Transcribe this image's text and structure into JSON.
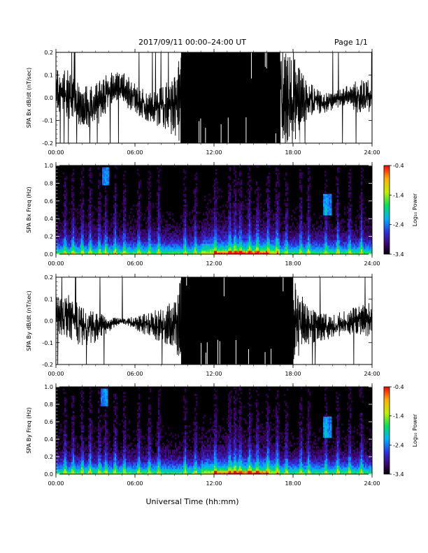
{
  "header": {
    "title": "2017/09/11   00:00–24:00 UT",
    "page": "Page 1/1"
  },
  "xlabel": "Universal Time (hh:mm)",
  "chart_data": [
    {
      "type": "line",
      "ylabel": "SPA Bx dB/dt (nT/sec)",
      "x_ticks": [
        "00:00",
        "06:00",
        "12:00",
        "18:00",
        "24:00"
      ],
      "xlim_hours": [
        0,
        24
      ],
      "ylim": [
        -0.2,
        0.2
      ],
      "y_ticks": [
        "-0.2",
        "-0.1",
        "0.0",
        "0.1",
        "0.2"
      ],
      "series_color": "#000000",
      "envelope": {
        "hours": [
          0,
          1,
          2,
          3,
          4,
          5,
          6,
          7,
          8,
          9,
          9.5,
          10,
          11,
          12,
          13,
          14,
          15,
          16,
          17,
          18,
          19,
          20,
          21,
          22,
          23,
          24
        ],
        "upper": [
          0.13,
          0.12,
          0.05,
          0.06,
          0.11,
          0.12,
          0.07,
          0.02,
          0.06,
          0.09,
          0.21,
          0.21,
          0.21,
          0.21,
          0.21,
          0.21,
          0.21,
          0.21,
          0.21,
          0.2,
          0.08,
          0.03,
          0.03,
          0.05,
          0.08,
          0.09
        ],
        "lower": [
          -0.05,
          -0.1,
          -0.13,
          -0.14,
          -0.05,
          -0.02,
          -0.08,
          -0.11,
          -0.13,
          -0.17,
          -0.21,
          -0.21,
          -0.21,
          -0.21,
          -0.21,
          -0.21,
          -0.21,
          -0.21,
          -0.21,
          -0.21,
          -0.1,
          -0.07,
          -0.06,
          -0.03,
          -0.07,
          -0.08
        ]
      }
    },
    {
      "type": "heatmap",
      "ylabel": "SPA Bx Freq (Hz)",
      "x_ticks": [
        "00:00",
        "06:00",
        "12:00",
        "18:00",
        "24:00"
      ],
      "xlim_hours": [
        0,
        24
      ],
      "ylim": [
        0.0,
        1.0
      ],
      "y_ticks": [
        "0.0",
        "0.2",
        "0.4",
        "0.6",
        "0.8",
        "1.0"
      ],
      "colorbar": {
        "label": "Log₁₀ Power",
        "range": [
          -3.4,
          -0.4
        ],
        "ticks": [
          "-0.4",
          "-1.4",
          "-2.4",
          "-3.4"
        ]
      },
      "bursts_hours": [
        0.7,
        1.3,
        2.0,
        2.6,
        3.3,
        3.8,
        4.5,
        5.2,
        6.3,
        7.1,
        7.8,
        9.8,
        10.6,
        12.1,
        13.2,
        13.6,
        14.0,
        14.7,
        15.3,
        16.1,
        16.8,
        17.5,
        18.6,
        19.2,
        20.5,
        21.4,
        22.3,
        23.2
      ],
      "features": [
        {
          "hour": 3.8,
          "freq_low": 0.78,
          "freq_high": 0.98
        },
        {
          "hour": 20.6,
          "freq_low": 0.44,
          "freq_high": 0.68
        }
      ]
    },
    {
      "type": "line",
      "ylabel": "SPA By dB/dt (nT/sec)",
      "x_ticks": [
        "00:00",
        "06:00",
        "12:00",
        "18:00",
        "24:00"
      ],
      "xlim_hours": [
        0,
        24
      ],
      "ylim": [
        -0.2,
        0.2
      ],
      "y_ticks": [
        "-0.2",
        "-0.1",
        "0.0",
        "0.1",
        "0.2"
      ],
      "series_color": "#000000",
      "envelope": {
        "hours": [
          0,
          1,
          2,
          3,
          4,
          5,
          6,
          7,
          8,
          9,
          9.5,
          10,
          11,
          12,
          13,
          14,
          15,
          16,
          17,
          18,
          19,
          20,
          21,
          22,
          23,
          24
        ],
        "upper": [
          0.11,
          0.12,
          0.06,
          0.04,
          0.02,
          0.01,
          0.02,
          0.04,
          0.06,
          0.1,
          0.21,
          0.21,
          0.21,
          0.21,
          0.21,
          0.21,
          0.21,
          0.21,
          0.21,
          0.21,
          0.08,
          0.04,
          0.03,
          0.05,
          0.07,
          0.09
        ],
        "lower": [
          -0.06,
          -0.08,
          -0.12,
          -0.1,
          -0.05,
          -0.01,
          -0.04,
          -0.07,
          -0.1,
          -0.13,
          -0.21,
          -0.21,
          -0.21,
          -0.21,
          -0.21,
          -0.21,
          -0.21,
          -0.21,
          -0.21,
          -0.21,
          -0.12,
          -0.09,
          -0.09,
          -0.07,
          -0.06,
          -0.08
        ]
      }
    },
    {
      "type": "heatmap",
      "ylabel": "SPA By Freq (Hz)",
      "x_ticks": [
        "00:00",
        "06:00",
        "12:00",
        "18:00",
        "24:00"
      ],
      "xlim_hours": [
        0,
        24
      ],
      "ylim": [
        0.0,
        1.0
      ],
      "y_ticks": [
        "0.0",
        "0.2",
        "0.4",
        "0.6",
        "0.8",
        "1.0"
      ],
      "colorbar": {
        "label": "Log₁₀ Power",
        "range": [
          -3.4,
          -0.4
        ],
        "ticks": [
          "-0.4",
          "-1.4",
          "-2.4",
          "-3.4"
        ]
      },
      "bursts_hours": [
        0.7,
        1.3,
        2.0,
        2.6,
        3.3,
        3.8,
        4.5,
        5.2,
        6.3,
        7.1,
        7.8,
        9.8,
        10.6,
        12.1,
        13.2,
        13.6,
        14.0,
        14.7,
        15.3,
        16.1,
        16.8,
        17.5,
        18.6,
        19.2,
        20.5,
        21.4,
        22.3,
        23.2
      ],
      "features": [
        {
          "hour": 3.7,
          "freq_low": 0.78,
          "freq_high": 0.98
        },
        {
          "hour": 20.6,
          "freq_low": 0.42,
          "freq_high": 0.66
        }
      ]
    }
  ]
}
